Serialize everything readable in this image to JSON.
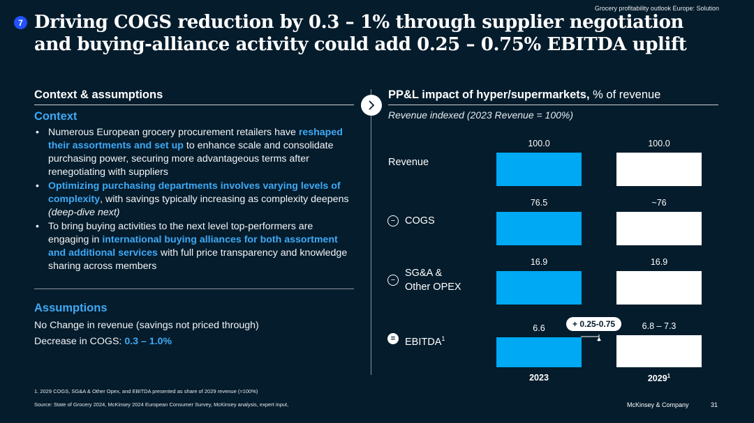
{
  "header": {
    "tag": "Grocery profitability outlook Europe: Solution",
    "badge_number": "7",
    "title_line1": "Driving COGS reduction by 0.3 – 1% through supplier negotiation",
    "title_line2": "and buying-alliance activity could add 0.25 – 0.75% EBITDA uplift"
  },
  "left": {
    "heading": "Context & assumptions",
    "context_heading": "Context",
    "bullets": [
      {
        "parts": [
          {
            "text": "Numerous European grocery procurement retailers have ",
            "hl": false
          },
          {
            "text": "reshaped their assortments and set up",
            "hl": true
          },
          {
            "text": " to enhance scale and consolidate purchasing power, securing more advantageous terms after renegotiating with suppliers",
            "hl": false
          }
        ]
      },
      {
        "parts": [
          {
            "text": "Optimizing purchasing departments involves varying levels of complexity",
            "hl": true
          },
          {
            "text": ", with savings typically increasing as complexity deepens ",
            "hl": false
          },
          {
            "text": "(deep-dive next)",
            "hl": false,
            "italic": true
          }
        ]
      },
      {
        "parts": [
          {
            "text": "To bring buying activities to the next level top-performers are engaging in ",
            "hl": false
          },
          {
            "text": "international buying alliances for both assortment and additional services",
            "hl": true
          },
          {
            "text": " with full price transparency and knowledge sharing across members",
            "hl": false
          }
        ]
      }
    ],
    "assumptions_heading": "Assumptions",
    "assumption1": "No Change in revenue (savings not priced through)",
    "assumption2_label": "Decrease in COGS: ",
    "assumption2_value": "0.3 – 1.0%"
  },
  "chart_data": {
    "type": "bar",
    "title_bold": "PP&L impact of hyper/supermarkets,",
    "title_rest": " % of revenue",
    "subtitle": "Revenue indexed (2023 Revenue = 100%)",
    "categories": [
      "2023",
      "2029"
    ],
    "category_footnote": "1",
    "rows": [
      {
        "label": "Revenue",
        "operator": "",
        "values": [
          100.0,
          100.0
        ],
        "labels": [
          "100.0",
          "100.0"
        ]
      },
      {
        "label": "COGS",
        "operator": "−",
        "values": [
          76.5,
          76
        ],
        "labels": [
          "76.5",
          "~76"
        ]
      },
      {
        "label_line1": "SG&A &",
        "label_line2": "Other OPEX",
        "label": "SG&A & Other OPEX",
        "operator": "−",
        "values": [
          16.9,
          16.9
        ],
        "labels": [
          "16.9",
          "16.9"
        ]
      },
      {
        "label": "EBITDA",
        "label_footnote": "1",
        "operator": "=",
        "values": [
          6.6,
          7.05
        ],
        "labels": [
          "6.6",
          "6.8 – 7.3"
        ]
      }
    ],
    "callout": "+ 0.25-0.75",
    "colors": {
      "2023": "#00a9f4",
      "2029": "#ffffff"
    }
  },
  "footer": {
    "note": "1.   2029 COGS, SG&A & Other Opex, and EBITDA presented as share of 2029 revenue (=100%)",
    "source": "Source: State of Grocery 2024, McKinsey 2024 European Consumer Survey, McKinsey analysis, expert input,",
    "company": "McKinsey & Company",
    "page": "31"
  }
}
